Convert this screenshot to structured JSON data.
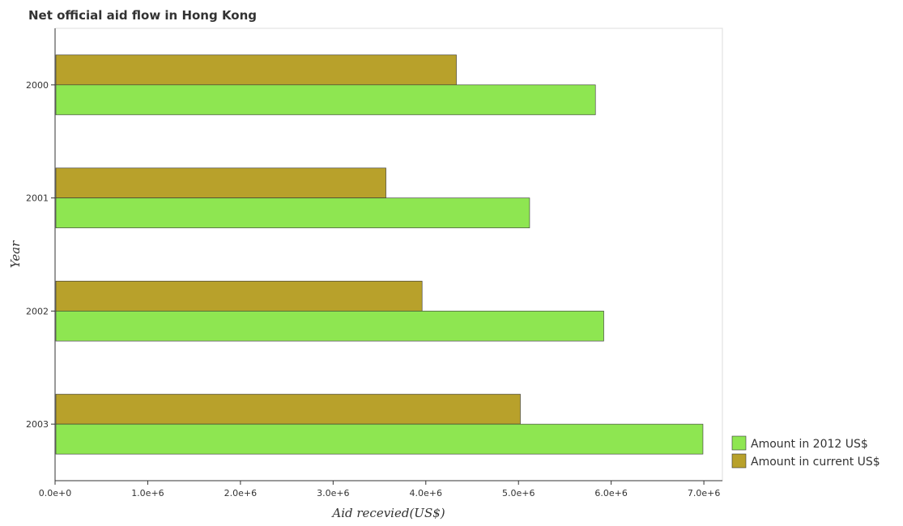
{
  "chart_data": {
    "type": "bar",
    "orientation": "horizontal",
    "title": "Net official aid flow in Hong Kong",
    "xlabel": "Aid recevied(US$)",
    "ylabel": "Year",
    "categories": [
      "2000",
      "2001",
      "2002",
      "2003"
    ],
    "series": [
      {
        "name": "Amount in 2012 US$",
        "color": "#8ee651",
        "values": [
          5830000,
          5120000,
          5920000,
          6990000
        ]
      },
      {
        "name": "Amount in current US$",
        "color": "#b8a12b",
        "values": [
          4330000,
          3570000,
          3960000,
          5020000
        ]
      }
    ],
    "xlim": [
      0,
      7200000
    ],
    "xticks": [
      0,
      1000000,
      2000000,
      3000000,
      4000000,
      5000000,
      6000000,
      7000000
    ],
    "xtick_labels": [
      "0.0e+0",
      "1.0e+6",
      "2.0e+6",
      "3.0e+6",
      "4.0e+6",
      "5.0e+6",
      "6.0e+6",
      "7.0e+6"
    ],
    "grid": false,
    "legend_position": "bottom-right"
  }
}
